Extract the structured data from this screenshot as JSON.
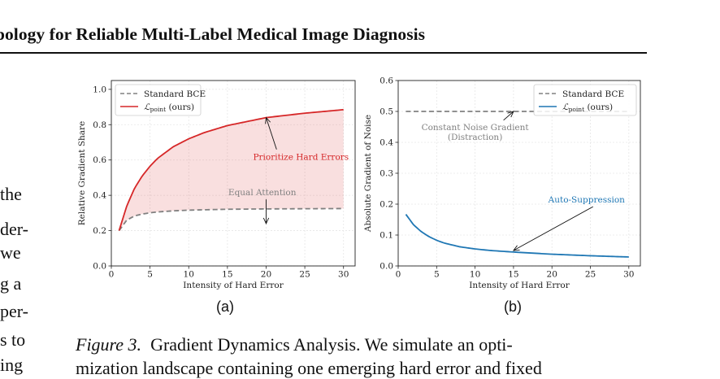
{
  "header": {
    "title": "pology for Reliable Multi-Label Medical Image Diagnosis"
  },
  "left_margin_text": [
    "the",
    "der-",
    "we",
    "g a",
    "per-",
    "s to",
    "ing"
  ],
  "figure": {
    "panels": [
      {
        "label": "(a)",
        "chart_data": {
          "type": "line",
          "xlabel": "Intensity of Hard Error",
          "ylabel": "Relative Gradient Share",
          "xlim": [
            0,
            31.5
          ],
          "ylim": [
            0.0,
            1.05
          ],
          "xticks": [
            0,
            5,
            10,
            15,
            20,
            25,
            30
          ],
          "yticks": [
            0.0,
            0.2,
            0.4,
            0.6,
            0.8,
            1.0
          ],
          "grid": true,
          "legend_position": "upper-left",
          "series": [
            {
              "name": "Standard BCE",
              "style": "dashed",
              "color": "#808080",
              "x": [
                1,
                2,
                3,
                4,
                5,
                6,
                8,
                10,
                12,
                15,
                20,
                25,
                30
              ],
              "values": [
                0.2,
                0.26,
                0.283,
                0.294,
                0.301,
                0.306,
                0.312,
                0.316,
                0.318,
                0.321,
                0.323,
                0.324,
                0.325
              ]
            },
            {
              "name": "ℒpoint (ours)",
              "style": "solid",
              "color": "#d62728",
              "x": [
                1,
                2,
                3,
                4,
                5,
                6,
                8,
                10,
                12,
                15,
                20,
                25,
                30
              ],
              "values": [
                0.2,
                0.34,
                0.44,
                0.51,
                0.565,
                0.61,
                0.675,
                0.72,
                0.755,
                0.795,
                0.84,
                0.865,
                0.885
              ]
            }
          ],
          "fill_between": {
            "color": "#d62728",
            "alpha": 0.15
          },
          "annotations": [
            {
              "text": "Prioritize Hard Errors",
              "color": "#d62728",
              "arrow_to": [
                20,
                0.84
              ],
              "text_at": [
                24.5,
                0.6
              ]
            },
            {
              "text": "Equal Attention",
              "color": "#808080",
              "arrow_to": [
                20,
                0.24
              ],
              "text_at": [
                19.5,
                0.4
              ]
            }
          ]
        }
      },
      {
        "label": "(b)",
        "chart_data": {
          "type": "line",
          "xlabel": "Intensity of Hard Error",
          "ylabel": "Absolute Gradient of Noise",
          "xlim": [
            0,
            31.5
          ],
          "ylim": [
            0.0,
            0.6
          ],
          "xticks": [
            0,
            5,
            10,
            15,
            20,
            25,
            30
          ],
          "yticks": [
            0.0,
            0.1,
            0.2,
            0.3,
            0.4,
            0.5,
            0.6
          ],
          "grid": true,
          "legend_position": "upper-right",
          "series": [
            {
              "name": "Standard BCE",
              "style": "dashed",
              "color": "#808080",
              "x": [
                1,
                30
              ],
              "values": [
                0.5,
                0.5
              ]
            },
            {
              "name": "ℒpoint (ours)",
              "style": "solid",
              "color": "#1f77b4",
              "x": [
                1,
                2,
                3,
                4,
                5,
                6,
                8,
                10,
                12,
                15,
                20,
                25,
                30
              ],
              "values": [
                0.167,
                0.133,
                0.111,
                0.095,
                0.083,
                0.074,
                0.062,
                0.055,
                0.05,
                0.045,
                0.038,
                0.033,
                0.029
              ]
            }
          ],
          "annotations": [
            {
              "text": "Constant Noise Gradient",
              "text2": "(Distraction)",
              "color": "#808080",
              "arrow_to": [
                15,
                0.5
              ],
              "text_at": [
                10,
                0.44
              ]
            },
            {
              "text": "Auto-Suppression",
              "color": "#1f77b4",
              "arrow_to": [
                15,
                0.05
              ],
              "text_at": [
                24.5,
                0.205
              ]
            }
          ]
        }
      }
    ],
    "caption": {
      "label": "Figure 3.",
      "line1": "Gradient Dynamics Analysis.  We simulate an opti-",
      "line2": "mization landscape containing one emerging hard error and fixed"
    }
  }
}
